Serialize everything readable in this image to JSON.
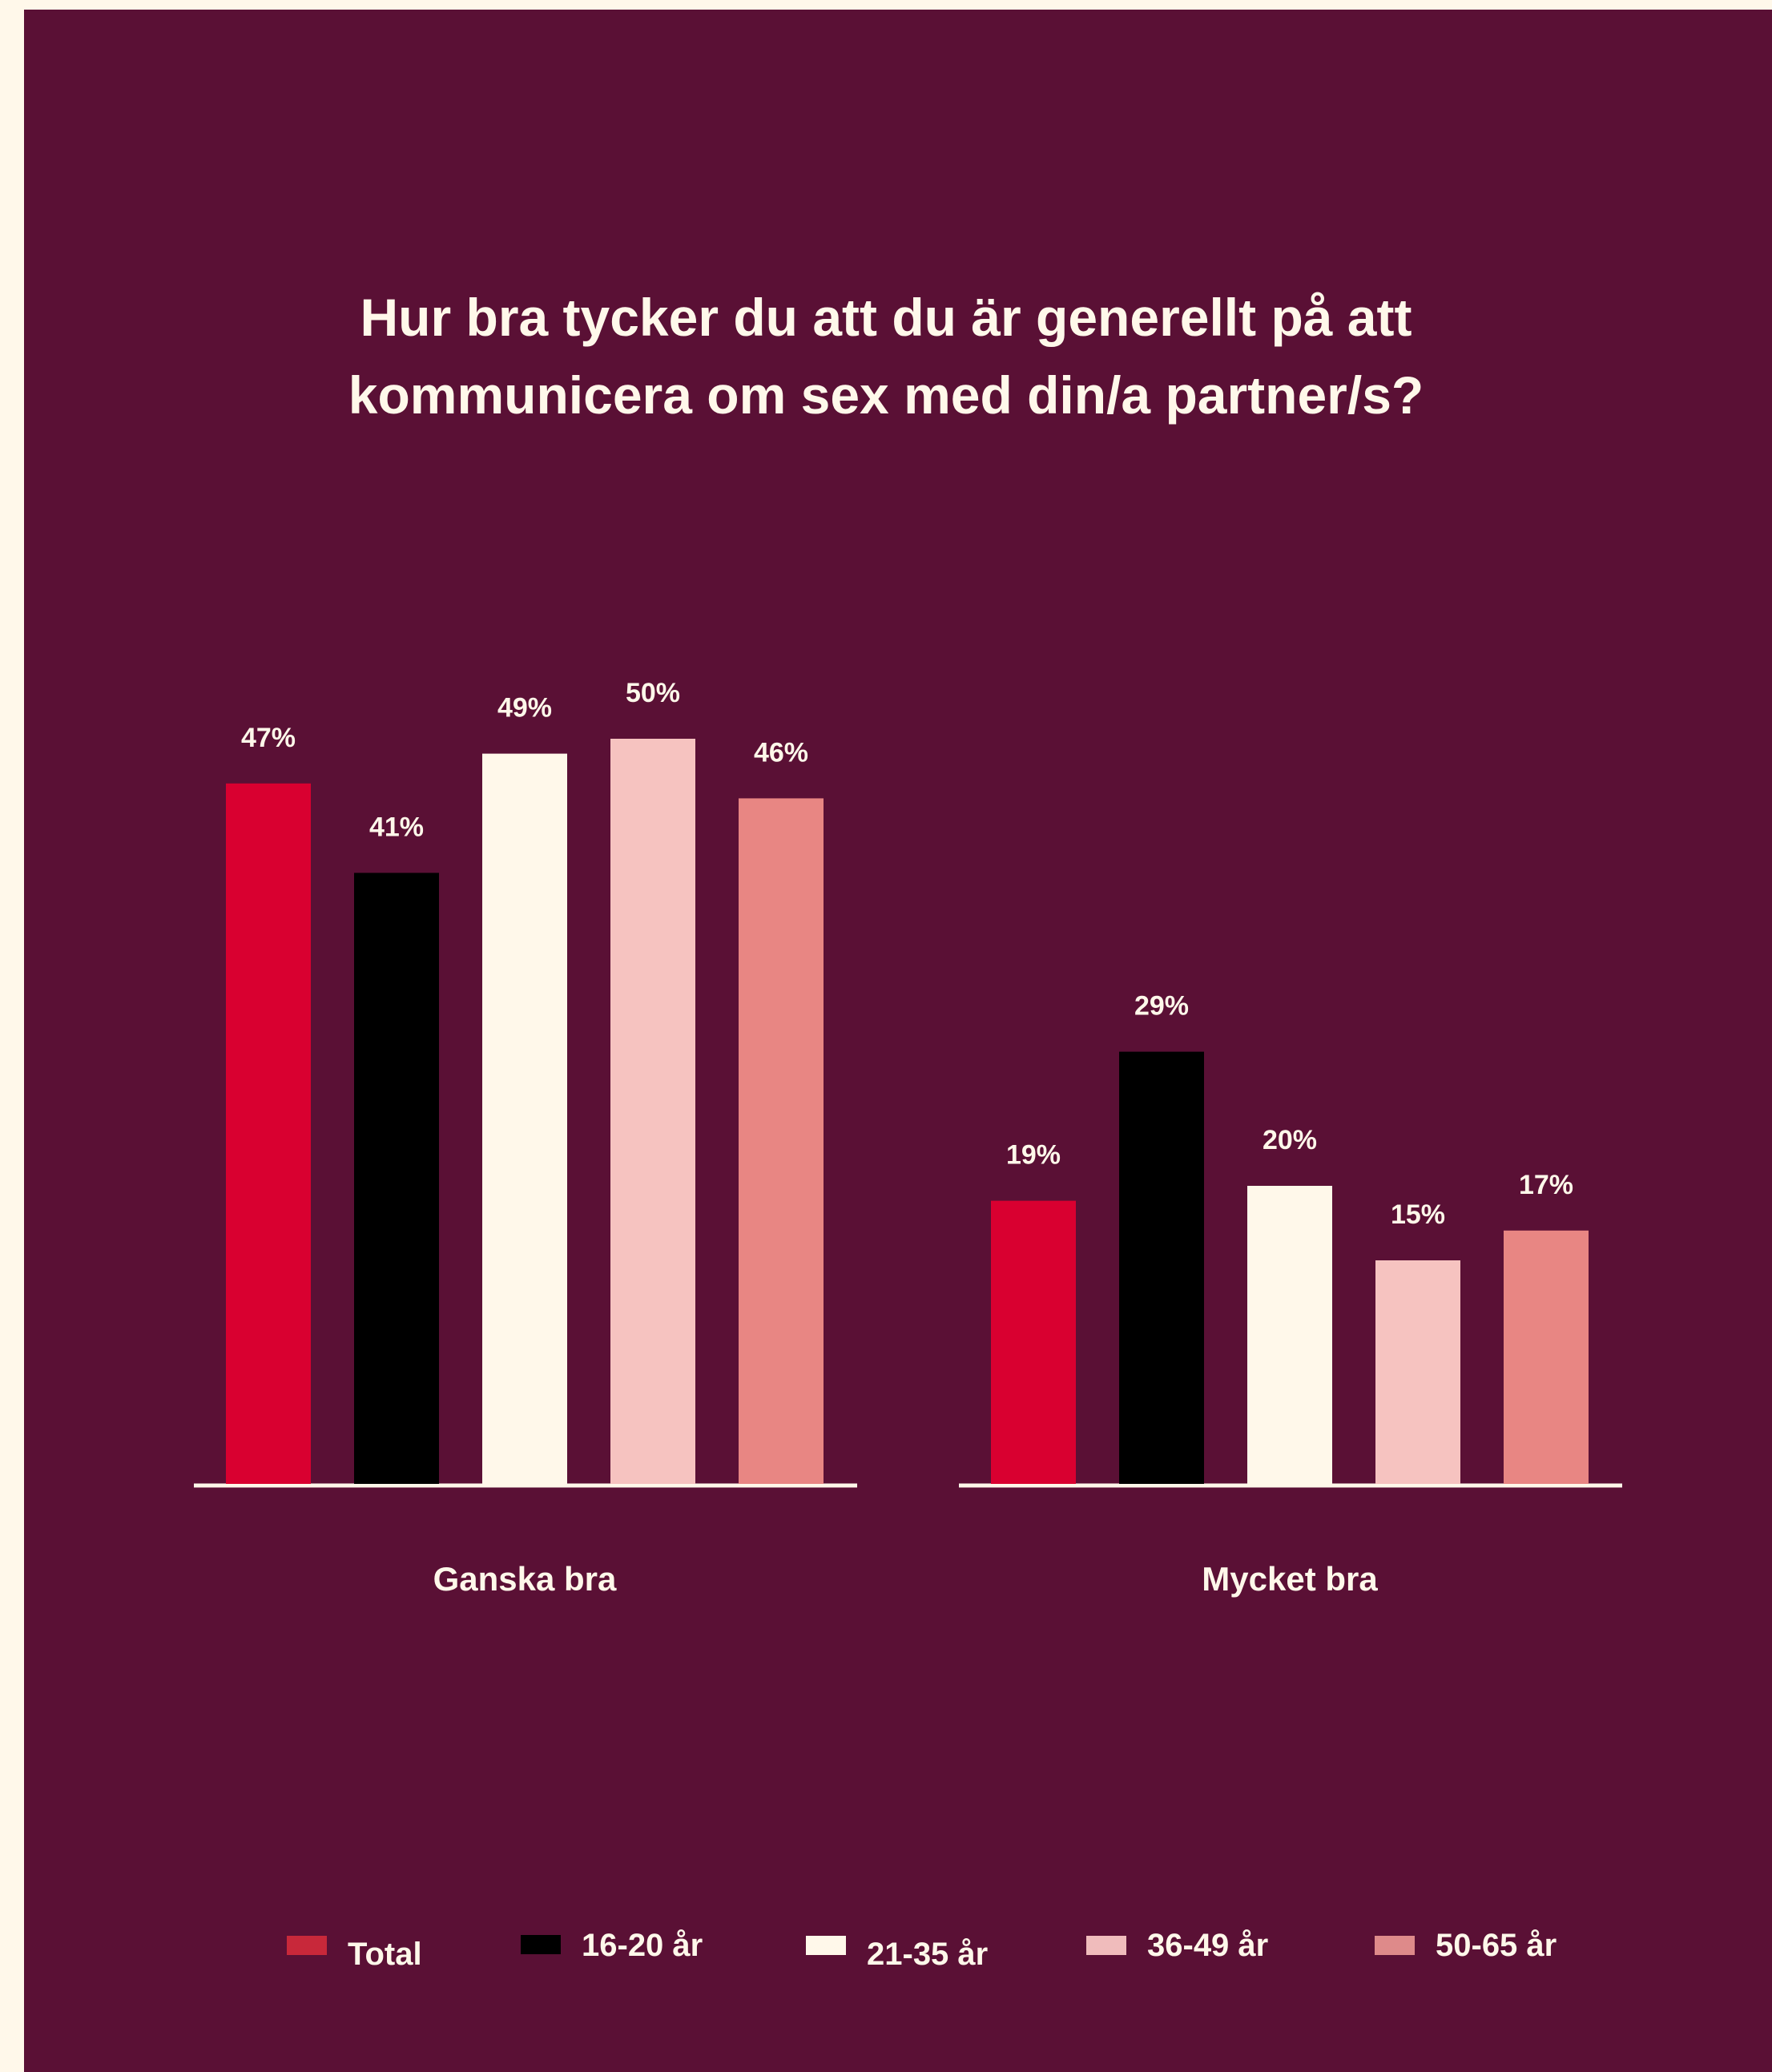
{
  "chart_data": {
    "type": "bar",
    "title_lines": [
      "Hur bra tycker du att du är generellt på att",
      "kommunicera om sex med din/a partner/s?"
    ],
    "categories": [
      "Ganska bra",
      "Mycket bra"
    ],
    "value_format": "%",
    "series": [
      {
        "name": "Total",
        "color": "#d90030",
        "legend_color": "#c8283a",
        "values": [
          47,
          19
        ]
      },
      {
        "name": "16-20 år",
        "color": "#000000",
        "legend_color": "#000000",
        "values": [
          41,
          29
        ]
      },
      {
        "name": "21-35 år",
        "color": "#fff8ea",
        "legend_color": "#fff8ea",
        "values": [
          49,
          20
        ]
      },
      {
        "name": "36-49 år",
        "color": "#f6c3c0",
        "legend_color": "#f0bcbc",
        "values": [
          50,
          15
        ]
      },
      {
        "name": "50-65 år",
        "color": "#e88683",
        "legend_color": "#de8a8a",
        "values": [
          46,
          17
        ]
      }
    ],
    "grid": false,
    "legend_position": "bottom",
    "ylim": [
      0,
      50
    ]
  },
  "colors": {
    "background": "#5a1035",
    "page_edge": "#fff8ea",
    "text": "#fff8ea",
    "baseline": "#fff8ea"
  }
}
